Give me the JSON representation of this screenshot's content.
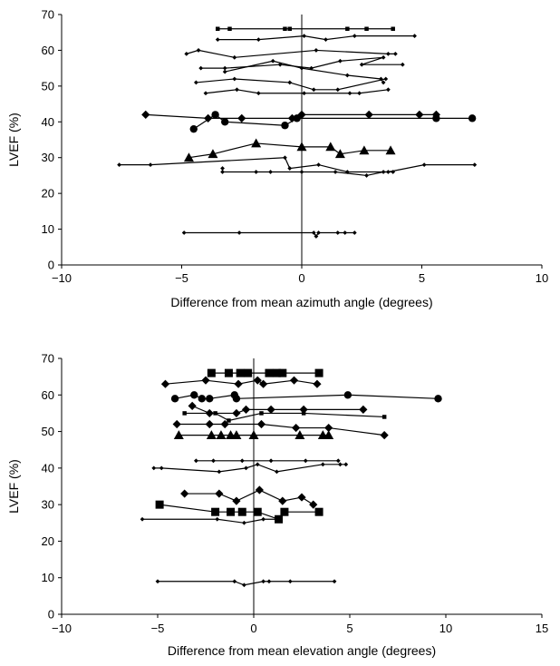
{
  "chart_data": [
    {
      "type": "line",
      "title": "",
      "xlabel": "Difference from mean azimuth angle (degrees)",
      "ylabel": "LVEF (%)",
      "xlim": [
        -10,
        10
      ],
      "ylim": [
        0,
        70
      ],
      "xticks": [
        -10,
        -5,
        0,
        5,
        10
      ],
      "yticks": [
        0,
        10,
        20,
        30,
        40,
        50,
        60,
        70
      ],
      "xtick_labels": [
        "−10",
        "−5",
        "0",
        "5",
        "10"
      ],
      "ytick_labels": [
        "0",
        "10",
        "20",
        "30",
        "40",
        "50",
        "60",
        "70"
      ],
      "zero_line": true,
      "grid": false,
      "series": [
        {
          "marker": "square",
          "size": "small",
          "points": [
            [
              -3.5,
              66
            ],
            [
              -3.0,
              66
            ],
            [
              -0.7,
              66
            ],
            [
              -0.5,
              66
            ],
            [
              1.9,
              66
            ],
            [
              2.7,
              66
            ],
            [
              3.8,
              66
            ]
          ]
        },
        {
          "marker": "diamond",
          "size": "small",
          "points": [
            [
              -3.5,
              63
            ],
            [
              -1.8,
              63
            ],
            [
              0.1,
              64
            ],
            [
              1.0,
              63
            ],
            [
              2.2,
              64
            ],
            [
              4.7,
              64
            ]
          ]
        },
        {
          "marker": "diamond",
          "size": "small",
          "points": [
            [
              -4.8,
              59
            ],
            [
              -4.3,
              60
            ],
            [
              -2.8,
              58
            ],
            [
              0.6,
              60
            ],
            [
              3.6,
              59
            ],
            [
              3.9,
              59
            ]
          ]
        },
        {
          "marker": "diamond",
          "size": "small",
          "points": [
            [
              -4.2,
              55
            ],
            [
              -3.2,
              55
            ],
            [
              -0.9,
              56
            ],
            [
              0.4,
              55
            ],
            [
              1.6,
              57
            ],
            [
              3.4,
              58
            ],
            [
              2.5,
              56
            ],
            [
              4.2,
              56
            ]
          ]
        },
        {
          "marker": "diamond",
          "size": "small",
          "points": [
            [
              -3.2,
              54
            ],
            [
              -1.2,
              57
            ],
            [
              0.0,
              55
            ],
            [
              1.9,
              53
            ],
            [
              3.3,
              52
            ],
            [
              3.4,
              51
            ]
          ]
        },
        {
          "marker": "diamond",
          "size": "small",
          "points": [
            [
              -4.4,
              51
            ],
            [
              -2.8,
              52
            ],
            [
              -0.5,
              51
            ],
            [
              0.5,
              49
            ],
            [
              1.5,
              49
            ],
            [
              3.5,
              52
            ]
          ]
        },
        {
          "marker": "diamond",
          "size": "small",
          "points": [
            [
              -4.0,
              48
            ],
            [
              -2.7,
              49
            ],
            [
              -1.8,
              48
            ],
            [
              0.1,
              48
            ],
            [
              2.0,
              48
            ],
            [
              2.4,
              48
            ],
            [
              3.6,
              49
            ]
          ]
        },
        {
          "marker": "diamond",
          "size": "large",
          "points": [
            [
              -6.5,
              42
            ],
            [
              -3.9,
              41
            ],
            [
              -2.5,
              41
            ],
            [
              -0.4,
              41
            ],
            [
              0.0,
              42
            ],
            [
              2.8,
              42
            ],
            [
              4.9,
              42
            ],
            [
              5.6,
              42
            ]
          ]
        },
        {
          "marker": "circle",
          "size": "large",
          "points": [
            [
              -4.5,
              38
            ],
            [
              -3.6,
              42
            ],
            [
              -3.2,
              40
            ],
            [
              -0.7,
              39
            ],
            [
              -0.2,
              41
            ],
            [
              5.6,
              41
            ],
            [
              7.1,
              41
            ]
          ]
        },
        {
          "marker": "triangle",
          "size": "large",
          "points": [
            [
              -4.7,
              30
            ],
            [
              -3.7,
              31
            ],
            [
              -1.9,
              34
            ],
            [
              0.0,
              33
            ],
            [
              1.2,
              33
            ],
            [
              1.6,
              31
            ],
            [
              2.6,
              32
            ],
            [
              3.7,
              32
            ]
          ]
        },
        {
          "marker": "diamond",
          "size": "small",
          "points": [
            [
              -7.6,
              28
            ],
            [
              -6.3,
              28
            ],
            [
              -0.7,
              30
            ],
            [
              -0.5,
              27
            ],
            [
              0.7,
              28
            ],
            [
              1.9,
              26
            ],
            [
              3.6,
              26
            ],
            [
              5.1,
              28
            ],
            [
              7.2,
              28
            ]
          ]
        },
        {
          "marker": "diamond",
          "size": "small",
          "points": [
            [
              -3.3,
              27
            ],
            [
              -3.3,
              26
            ],
            [
              -1.9,
              26
            ],
            [
              -1.3,
              26
            ],
            [
              0.0,
              26
            ],
            [
              1.4,
              26
            ],
            [
              2.7,
              25
            ],
            [
              3.4,
              26
            ],
            [
              3.8,
              26
            ]
          ]
        },
        {
          "marker": "diamond",
          "size": "small",
          "points": [
            [
              -4.9,
              9
            ],
            [
              -2.6,
              9
            ],
            [
              0.5,
              9
            ],
            [
              0.6,
              8
            ],
            [
              0.7,
              9
            ],
            [
              1.5,
              9
            ],
            [
              1.8,
              9
            ],
            [
              2.2,
              9
            ]
          ]
        }
      ]
    },
    {
      "type": "line",
      "title": "",
      "xlabel": "Difference from mean elevation angle (degrees)",
      "ylabel": "LVEF (%)",
      "xlim": [
        -10,
        15
      ],
      "ylim": [
        0,
        70
      ],
      "xticks": [
        -10,
        -5,
        0,
        5,
        10,
        15
      ],
      "yticks": [
        0,
        10,
        20,
        30,
        40,
        50,
        60,
        70
      ],
      "xtick_labels": [
        "−10",
        "−5",
        "0",
        "5",
        "10",
        "15"
      ],
      "ytick_labels": [
        "0",
        "10",
        "20",
        "30",
        "40",
        "50",
        "60",
        "70"
      ],
      "zero_line": true,
      "grid": false,
      "series": [
        {
          "marker": "square",
          "size": "large",
          "points": [
            [
              -2.2,
              66
            ],
            [
              -1.3,
              66
            ],
            [
              -0.7,
              66
            ],
            [
              -0.3,
              66
            ],
            [
              0.8,
              66
            ],
            [
              1.2,
              66
            ],
            [
              1.5,
              66
            ],
            [
              3.4,
              66
            ]
          ]
        },
        {
          "marker": "diamond",
          "size": "large",
          "points": [
            [
              -4.6,
              63
            ],
            [
              -2.5,
              64
            ],
            [
              -0.8,
              63
            ],
            [
              0.2,
              64
            ],
            [
              0.5,
              63
            ],
            [
              2.1,
              64
            ],
            [
              3.3,
              63
            ]
          ]
        },
        {
          "marker": "circle",
          "size": "large",
          "points": [
            [
              -4.1,
              59
            ],
            [
              -3.1,
              60
            ],
            [
              -2.7,
              59
            ],
            [
              -2.3,
              59
            ],
            [
              -1.0,
              60
            ],
            [
              -0.9,
              59
            ],
            [
              4.9,
              60
            ],
            [
              9.6,
              59
            ]
          ]
        },
        {
          "marker": "diamond",
          "size": "large",
          "points": [
            [
              -3.2,
              57
            ],
            [
              -2.3,
              55
            ],
            [
              -0.9,
              55
            ],
            [
              -0.4,
              56
            ],
            [
              0.9,
              56
            ],
            [
              2.6,
              56
            ],
            [
              5.7,
              56
            ]
          ]
        },
        {
          "marker": "square",
          "size": "small",
          "points": [
            [
              -3.6,
              55
            ],
            [
              -2.0,
              55
            ],
            [
              -1.3,
              53
            ],
            [
              0.4,
              55
            ],
            [
              2.6,
              55
            ],
            [
              6.8,
              54
            ]
          ]
        },
        {
          "marker": "diamond",
          "size": "large",
          "points": [
            [
              -4.0,
              52
            ],
            [
              -2.3,
              52
            ],
            [
              -1.5,
              52
            ],
            [
              0.4,
              52
            ],
            [
              2.2,
              51
            ],
            [
              3.9,
              51
            ],
            [
              6.8,
              49
            ]
          ]
        },
        {
          "marker": "triangle",
          "size": "large",
          "points": [
            [
              -3.9,
              49
            ],
            [
              -2.2,
              49
            ],
            [
              -1.7,
              49
            ],
            [
              -1.2,
              49
            ],
            [
              -0.9,
              49
            ],
            [
              0.0,
              49
            ],
            [
              2.4,
              49
            ],
            [
              3.6,
              49
            ],
            [
              3.9,
              49
            ]
          ]
        },
        {
          "marker": "diamond",
          "size": "small",
          "points": [
            [
              -3.0,
              42
            ],
            [
              -2.1,
              42
            ],
            [
              -0.6,
              42
            ],
            [
              0.9,
              42
            ],
            [
              2.7,
              42
            ],
            [
              4.4,
              42
            ]
          ]
        },
        {
          "marker": "diamond",
          "size": "small",
          "points": [
            [
              -5.2,
              40
            ],
            [
              -4.8,
              40
            ],
            [
              -1.8,
              39
            ],
            [
              -0.4,
              40
            ],
            [
              0.2,
              41
            ],
            [
              1.2,
              39
            ],
            [
              3.6,
              41
            ],
            [
              4.5,
              41
            ],
            [
              4.8,
              41
            ]
          ]
        },
        {
          "marker": "diamond",
          "size": "large",
          "points": [
            [
              -3.6,
              33
            ],
            [
              -1.8,
              33
            ],
            [
              -0.9,
              31
            ],
            [
              0.3,
              34
            ],
            [
              1.5,
              31
            ],
            [
              2.5,
              32
            ],
            [
              3.1,
              30
            ]
          ]
        },
        {
          "marker": "square",
          "size": "large",
          "points": [
            [
              -4.9,
              30
            ],
            [
              -2.0,
              28
            ],
            [
              -1.2,
              28
            ],
            [
              -0.6,
              28
            ],
            [
              0.2,
              28
            ],
            [
              1.3,
              26
            ],
            [
              1.6,
              28
            ],
            [
              3.4,
              28
            ]
          ]
        },
        {
          "marker": "diamond",
          "size": "small",
          "points": [
            [
              -5.8,
              26
            ],
            [
              -1.9,
              26
            ],
            [
              -0.5,
              25
            ],
            [
              0.5,
              26
            ],
            [
              1.3,
              26
            ]
          ]
        },
        {
          "marker": "diamond",
          "size": "small",
          "points": [
            [
              -5.0,
              9
            ],
            [
              -1.0,
              9
            ],
            [
              -0.5,
              8
            ],
            [
              0.5,
              9
            ],
            [
              0.8,
              9
            ],
            [
              1.9,
              9
            ],
            [
              4.2,
              9
            ]
          ]
        }
      ]
    }
  ]
}
